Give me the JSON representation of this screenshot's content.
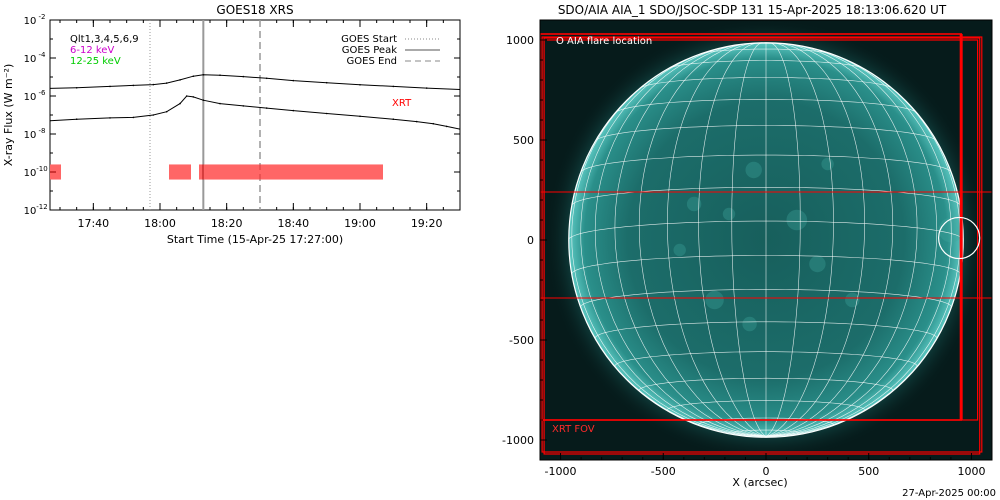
{
  "stamp": "27-Apr-2025 00:00",
  "chart_data": [
    {
      "type": "line",
      "title": "GOES18 XRS",
      "xlabel": "Start Time (15-Apr-25 17:27:00)",
      "ylabel": "X-ray Flux (W m⁻²)",
      "x_unit": "hh:mm on 15-Apr-2025",
      "xlim": [
        "17:27",
        "19:30"
      ],
      "ylim": [
        1e-12,
        0.01
      ],
      "yscale": "log",
      "xticks": [
        "17:40",
        "18:00",
        "18:20",
        "18:40",
        "19:00",
        "19:20"
      ],
      "yticks": [
        {
          "value": 0.01,
          "mant": "10",
          "exp": "-2"
        },
        {
          "value": 0.0001,
          "mant": "10",
          "exp": "-4"
        },
        {
          "value": 1e-06,
          "mant": "10",
          "exp": "-6"
        },
        {
          "value": 1e-08,
          "mant": "10",
          "exp": "-8"
        },
        {
          "value": 1e-10,
          "mant": "10",
          "exp": "-10"
        },
        {
          "value": 1e-12,
          "mant": "10",
          "exp": "-12"
        }
      ],
      "left_legend": [
        {
          "label": "Qlt1,3,4,5,6,9",
          "color": "#000000"
        },
        {
          "label": "6-12 keV",
          "color": "#cc00cc"
        },
        {
          "label": "12-25 keV",
          "color": "#00cc00"
        }
      ],
      "right_legend": [
        {
          "label": "GOES Start",
          "style": "dotted"
        },
        {
          "label": "GOES Peak",
          "style": "solid"
        },
        {
          "label": "GOES End",
          "style": "dashed"
        }
      ],
      "xrt_label": "XRT",
      "xrt_color": "#ff0000",
      "goes_start": "17:57",
      "goes_peak": "18:13",
      "goes_end": "18:30",
      "series": [
        {
          "channel": "long",
          "x": [
            "17:27",
            "17:35",
            "17:45",
            "17:52",
            "17:58",
            "18:02",
            "18:06",
            "18:10",
            "18:13",
            "18:18",
            "18:25",
            "18:32",
            "18:40",
            "18:50",
            "19:00",
            "19:10",
            "19:20",
            "19:30"
          ],
          "y": [
            2.5e-06,
            2.7e-06,
            3.2e-06,
            3.6e-06,
            4e-06,
            4.8e-06,
            7e-06,
            1.1e-05,
            1.3e-05,
            1.25e-05,
            1.05e-05,
            8.5e-06,
            6.5e-06,
            5e-06,
            3.9e-06,
            3.2e-06,
            2.6e-06,
            2.2e-06
          ]
        },
        {
          "channel": "short",
          "x": [
            "17:27",
            "17:35",
            "17:45",
            "17:52",
            "17:58",
            "18:02",
            "18:06",
            "18:08",
            "18:10",
            "18:13",
            "18:18",
            "18:25",
            "18:32",
            "18:40",
            "18:50",
            "19:00",
            "19:10",
            "19:17",
            "19:22",
            "19:26",
            "19:30"
          ],
          "y": [
            5e-08,
            6e-08,
            7e-08,
            7.5e-08,
            1e-07,
            1.5e-07,
            4e-07,
            1e-06,
            9e-07,
            6e-07,
            4e-07,
            3e-07,
            2.3e-07,
            1.7e-07,
            1.2e-07,
            8.5e-08,
            6e-08,
            4.5e-08,
            3.5e-08,
            2.5e-08,
            1.8e-08
          ]
        }
      ],
      "xrt_obs_blocks": [
        [
          "17:27",
          "17:30"
        ],
        [
          "18:03",
          "18:09"
        ],
        [
          "18:12",
          "19:07"
        ]
      ]
    },
    {
      "type": "image",
      "title": "SDO/AIA AIA_1 SDO/JSOC-SDP 131 15-Apr-2025 18:13:06.620 UT",
      "xlabel": "X (arcsec)",
      "xlim": [
        -1100,
        1100
      ],
      "ylim": [
        -1100,
        1100
      ],
      "xticks": [
        "-1000",
        "-500",
        "0",
        "500",
        "1000"
      ],
      "yticks": [
        "1000",
        "500",
        "0",
        "-500",
        "-1000"
      ],
      "legend": "O AIA flare location",
      "fov_label": "XRT FOV",
      "flare_location": [
        940,
        10
      ],
      "solar_radius": 960,
      "image_background": "#061b1b",
      "disk_color": "#1d6d6a",
      "grid_color": "#ffffff",
      "fov_color": "#ff0000"
    }
  ]
}
